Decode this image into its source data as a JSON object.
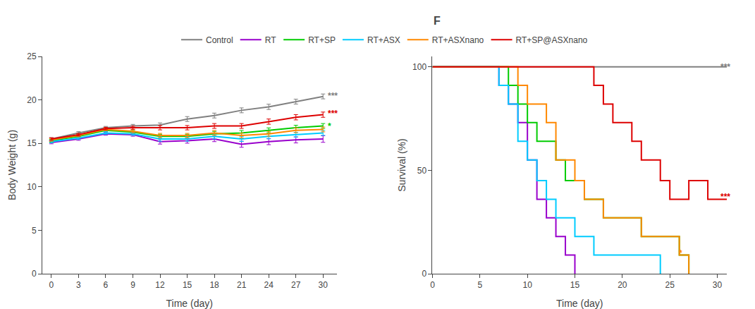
{
  "chart_data": [
    {
      "type": "line",
      "xlabel": "Time (day)",
      "ylabel": "Body Weight (g)",
      "xlim": [
        -1,
        31.5
      ],
      "ylim": [
        0,
        25
      ],
      "xticks": [
        0,
        3,
        6,
        9,
        12,
        15,
        18,
        21,
        24,
        27,
        30
      ],
      "yticks": [
        0,
        5,
        10,
        15,
        20,
        25
      ],
      "grid": false,
      "legend": "top",
      "x": [
        0,
        3,
        6,
        9,
        12,
        15,
        18,
        21,
        24,
        27,
        30
      ],
      "series": [
        {
          "name": "Control",
          "color": "#808080",
          "values": [
            15.5,
            16.2,
            16.8,
            17.0,
            17.1,
            17.8,
            18.2,
            18.8,
            19.2,
            19.8,
            20.4
          ],
          "errors": [
            0.15,
            0.15,
            0.15,
            0.18,
            0.25,
            0.28,
            0.28,
            0.28,
            0.3,
            0.28,
            0.28
          ]
        },
        {
          "name": "RT",
          "color": "#9900CC",
          "values": [
            15.1,
            15.5,
            16.1,
            16.0,
            15.2,
            15.3,
            15.5,
            14.9,
            15.2,
            15.4,
            15.5
          ],
          "errors": [
            0.15,
            0.15,
            0.15,
            0.18,
            0.28,
            0.28,
            0.3,
            0.35,
            0.35,
            0.35,
            0.38
          ]
        },
        {
          "name": "RT+SP",
          "color": "#00CC00",
          "values": [
            15.3,
            15.8,
            16.5,
            16.3,
            15.8,
            15.8,
            16.1,
            16.2,
            16.5,
            16.8,
            17.0
          ],
          "errors": [
            0.15,
            0.15,
            0.15,
            0.18,
            0.25,
            0.25,
            0.28,
            0.28,
            0.28,
            0.28,
            0.28
          ]
        },
        {
          "name": "RT+ASX",
          "color": "#00CCFF",
          "values": [
            15.2,
            15.6,
            16.2,
            16.1,
            15.5,
            15.5,
            15.8,
            15.5,
            15.8,
            16.0,
            16.2
          ],
          "errors": [
            0.15,
            0.15,
            0.15,
            0.18,
            0.25,
            0.25,
            0.28,
            0.28,
            0.28,
            0.28,
            0.28
          ]
        },
        {
          "name": "RT+ASXnano",
          "color": "#FF8800",
          "values": [
            15.4,
            15.9,
            16.6,
            16.4,
            15.9,
            15.9,
            16.2,
            15.9,
            16.1,
            16.5,
            16.6
          ],
          "errors": [
            0.15,
            0.15,
            0.15,
            0.18,
            0.25,
            0.25,
            0.28,
            0.28,
            0.28,
            0.28,
            0.28
          ]
        },
        {
          "name": "RT+SP@ASXnano",
          "color": "#DD0000",
          "values": [
            15.5,
            16.0,
            16.7,
            16.8,
            16.8,
            16.8,
            17.0,
            17.0,
            17.5,
            18.0,
            18.3
          ],
          "errors": [
            0.15,
            0.15,
            0.15,
            0.18,
            0.25,
            0.25,
            0.28,
            0.28,
            0.3,
            0.3,
            0.3
          ]
        }
      ],
      "annotations": [
        {
          "text": "***",
          "color": "#808080",
          "x": 30.4,
          "y": 20.45
        },
        {
          "text": "***",
          "color": "#DD0000",
          "x": 30.4,
          "y": 18.45
        },
        {
          "text": "*",
          "color": "#00CC00",
          "x": 30.4,
          "y": 17.0
        }
      ]
    },
    {
      "type": "line",
      "title": "F",
      "xlabel": "Time (day)",
      "ylabel": "Survival (%)",
      "xlim": [
        0,
        31
      ],
      "ylim": [
        0,
        105
      ],
      "xticks": [
        0,
        5,
        10,
        15,
        20,
        25,
        30
      ],
      "yticks": [
        0,
        50,
        100
      ],
      "grid": false,
      "legend": "top",
      "series": [
        {
          "name": "Control",
          "color": "#808080",
          "x": [
            0,
            31
          ],
          "values": [
            100,
            100
          ]
        },
        {
          "name": "RT",
          "color": "#9900CC",
          "x": [
            0,
            7,
            7,
            8,
            8,
            9,
            9,
            10,
            10,
            11,
            11,
            12,
            12,
            13,
            13,
            14,
            14,
            15,
            15
          ],
          "values": [
            100,
            100,
            91,
            91,
            82,
            82,
            73,
            73,
            55,
            55,
            36,
            36,
            27,
            27,
            18,
            18,
            9,
            9,
            0
          ]
        },
        {
          "name": "RT+SP",
          "color": "#00CC00",
          "x": [
            0,
            8,
            8,
            9,
            9,
            10,
            10,
            11,
            11,
            13,
            13,
            14,
            14,
            16,
            16,
            18,
            18,
            20,
            20,
            22,
            22,
            26,
            26,
            27,
            27
          ],
          "values": [
            100,
            100,
            91,
            91,
            82,
            82,
            73,
            73,
            64,
            64,
            55,
            55,
            45,
            45,
            36,
            36,
            27,
            27,
            27,
            27,
            18,
            18,
            9,
            9,
            0
          ]
        },
        {
          "name": "RT+ASX",
          "color": "#00CCFF",
          "x": [
            0,
            7,
            7,
            8,
            8,
            9,
            9,
            10,
            10,
            11,
            11,
            12,
            12,
            13,
            13,
            15,
            15,
            17,
            17,
            23,
            23,
            24,
            24
          ],
          "values": [
            100,
            100,
            91,
            91,
            82,
            82,
            64,
            64,
            55,
            55,
            45,
            45,
            36,
            36,
            27,
            27,
            18,
            18,
            9,
            9,
            9,
            9,
            0
          ]
        },
        {
          "name": "RT+ASXnano",
          "color": "#FF8800",
          "x": [
            0,
            9,
            9,
            10,
            10,
            12,
            12,
            13,
            13,
            15,
            15,
            16,
            16,
            18,
            18,
            20,
            20,
            22,
            22,
            25,
            25,
            26,
            26,
            27,
            27
          ],
          "values": [
            100,
            100,
            91,
            91,
            82,
            82,
            73,
            73,
            55,
            55,
            45,
            45,
            36,
            36,
            27,
            27,
            27,
            27,
            18,
            18,
            18,
            18,
            9,
            9,
            0
          ]
        },
        {
          "name": "RT+SP@ASXnano",
          "color": "#DD0000",
          "x": [
            0,
            17,
            17,
            18,
            18,
            19,
            19,
            21,
            21,
            22,
            22,
            24,
            24,
            25,
            25,
            27,
            27,
            29,
            29,
            31
          ],
          "values": [
            100,
            100,
            91,
            91,
            82,
            82,
            73,
            73,
            64,
            64,
            55,
            55,
            45,
            45,
            36,
            36,
            45,
            45,
            36,
            36
          ]
        }
      ],
      "annotations": [
        {
          "text": "***",
          "color": "#808080",
          "x": 30.2,
          "y": 100
        },
        {
          "text": "***",
          "color": "#DD0000",
          "x": 30.2,
          "y": 37
        },
        {
          "text": "*",
          "color": "#FF8800",
          "x": 25.8,
          "y": 10
        }
      ]
    }
  ]
}
